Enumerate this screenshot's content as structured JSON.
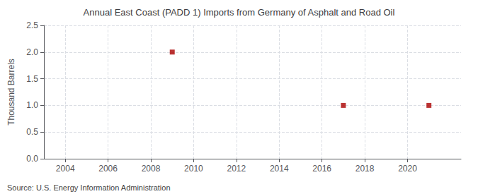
{
  "chart_data": {
    "type": "scatter",
    "title": "Annual East Coast (PADD 1) Imports from Germany of Asphalt and Road Oil",
    "ylabel": "Thousand Barrels",
    "annotations": [
      "Source: U.S. Energy Information Administration"
    ],
    "x": [
      2009,
      2017,
      2021
    ],
    "values": [
      2.0,
      1.0,
      1.0
    ],
    "color": "#aa0000",
    "marker": "square",
    "xlim": [
      2003.0,
      2022.5
    ],
    "ylim": [
      0.0,
      2.5
    ],
    "xticks": [
      2004,
      2006,
      2008,
      2010,
      2012,
      2014,
      2016,
      2018,
      2020
    ],
    "yticks": [
      {
        "value": 0,
        "label": "0.0"
      },
      0.5,
      {
        "value": 1,
        "label": "1.0"
      },
      1.5,
      {
        "value": 2,
        "label": "2.0"
      },
      2.5
    ],
    "grid": true
  }
}
